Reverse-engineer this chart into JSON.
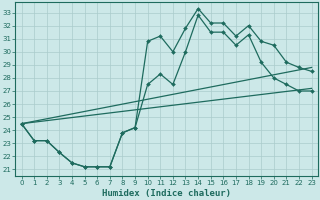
{
  "xlabel": "Humidex (Indice chaleur)",
  "bg_color": "#cce8e8",
  "line_color": "#1e6b5e",
  "grid_color": "#aacccc",
  "xlim": [
    -0.5,
    23.5
  ],
  "ylim": [
    20.5,
    33.8
  ],
  "yticks": [
    21,
    22,
    23,
    24,
    25,
    26,
    27,
    28,
    29,
    30,
    31,
    32,
    33
  ],
  "xticks": [
    0,
    1,
    2,
    3,
    4,
    5,
    6,
    7,
    8,
    9,
    10,
    11,
    12,
    13,
    14,
    15,
    16,
    17,
    18,
    19,
    20,
    21,
    22,
    23
  ],
  "line1_x": [
    0,
    1,
    2,
    3,
    4,
    5,
    6,
    7,
    8,
    9,
    10,
    11,
    12,
    13,
    14,
    15,
    16,
    17,
    18,
    19,
    20,
    21,
    22,
    23
  ],
  "line1_y": [
    24.5,
    23.2,
    23.2,
    22.3,
    21.5,
    21.2,
    21.2,
    21.2,
    23.8,
    24.2,
    30.8,
    31.2,
    30.0,
    31.8,
    33.3,
    32.2,
    32.2,
    31.2,
    32.0,
    30.8,
    30.5,
    29.2,
    28.8,
    28.5
  ],
  "line2_x": [
    0,
    1,
    2,
    3,
    4,
    5,
    6,
    7,
    8,
    9,
    10,
    11,
    12,
    13,
    14,
    15,
    16,
    17,
    18,
    19,
    20,
    21,
    22,
    23
  ],
  "line2_y": [
    24.5,
    23.2,
    23.2,
    22.3,
    21.5,
    21.2,
    21.2,
    21.2,
    23.8,
    24.2,
    27.5,
    28.3,
    27.5,
    30.0,
    32.8,
    31.5,
    31.5,
    30.5,
    31.3,
    29.2,
    28.0,
    27.5,
    27.0,
    27.0
  ],
  "line3_x": [
    0,
    23
  ],
  "line3_y": [
    24.5,
    28.8
  ],
  "line4_x": [
    0,
    23
  ],
  "line4_y": [
    24.5,
    27.2
  ]
}
